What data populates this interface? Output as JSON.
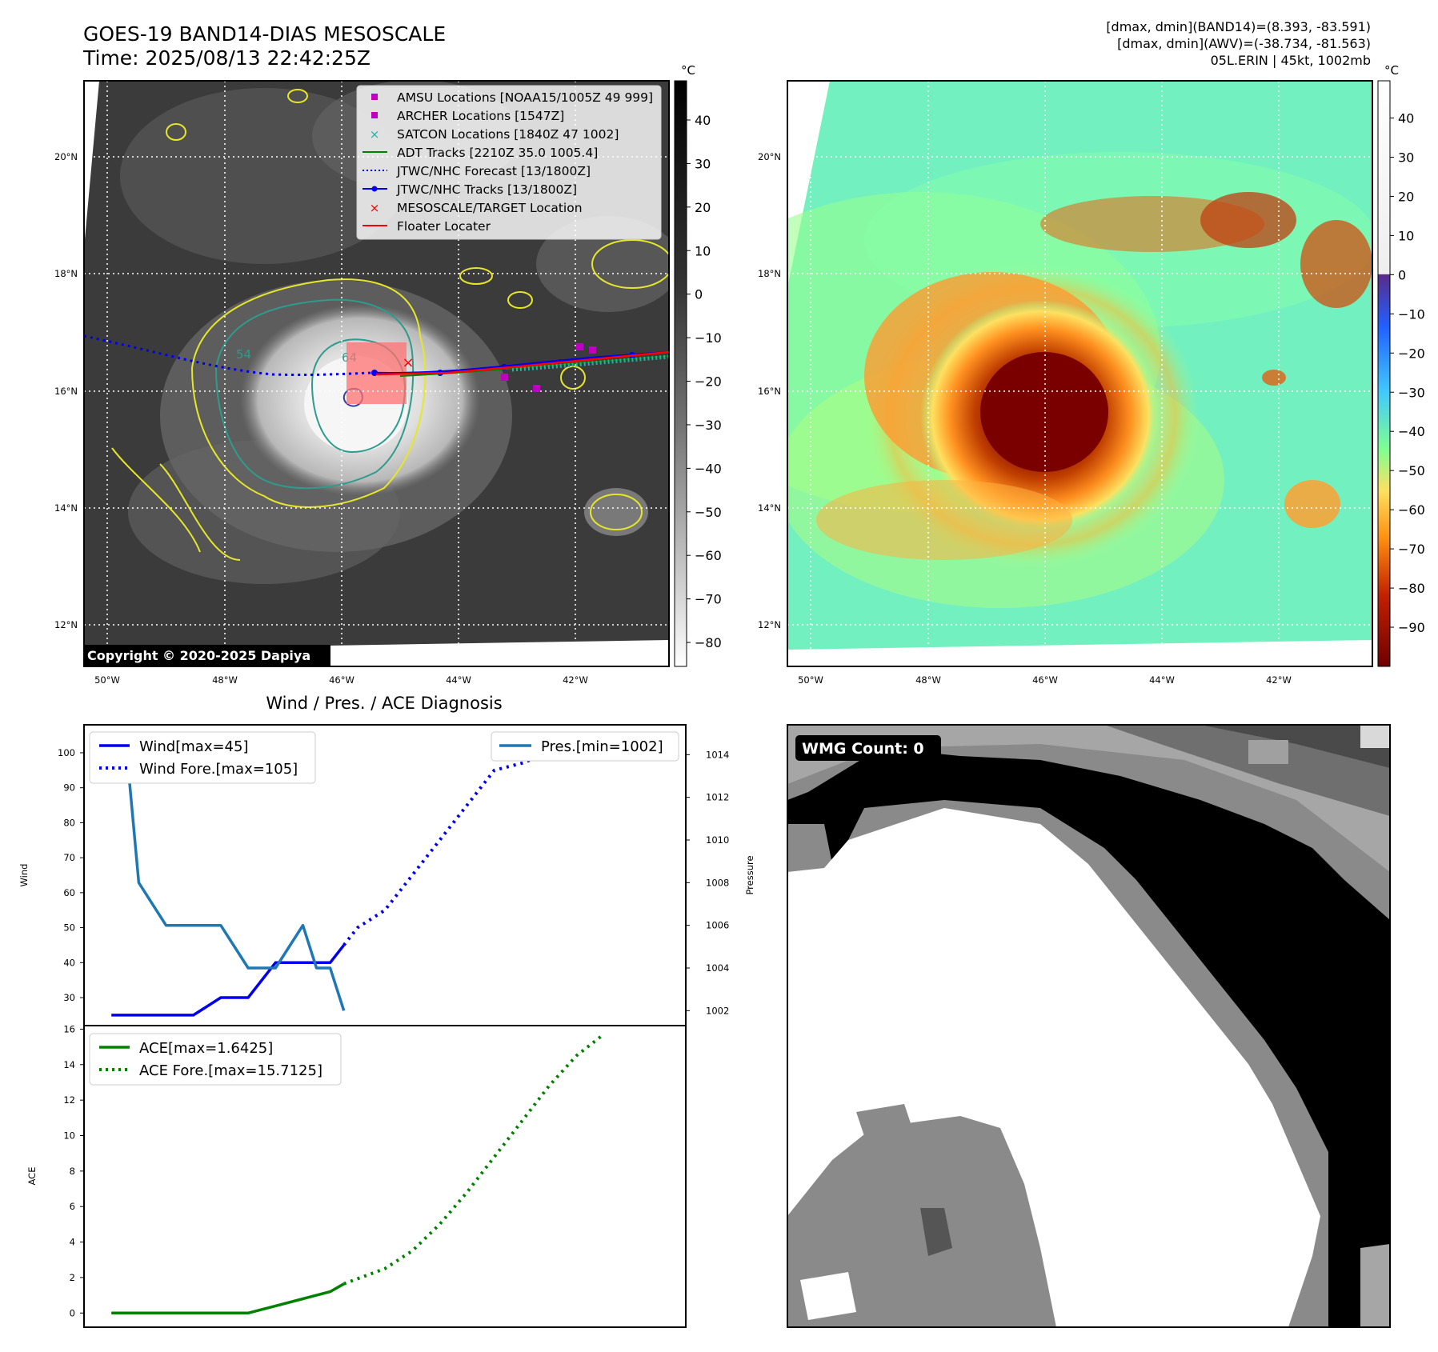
{
  "header": {
    "title": "GOES-19 BAND14-DIAS MESOSCALE",
    "time": "Time: 2025/08/13 22:42:25Z",
    "dmax_band14": "[dmax, dmin](BAND14)=(8.393, -83.591)",
    "dmax_awv": "[dmax, dmin](AWV)=(-38.734, -81.563)",
    "storm": "05L.ERIN | 45kt, 1002mb"
  },
  "map": {
    "lat_labels": [
      "20°N",
      "18°N",
      "16°N",
      "14°N",
      "12°N"
    ],
    "lon_labels": [
      "50°W",
      "48°W",
      "46°W",
      "44°W",
      "42°W"
    ],
    "copyright": "Copyright © 2020-2025 Dapiya",
    "contour_labels": [
      "54",
      "64"
    ],
    "colorbar_unit": "°C",
    "ir_colorbar_ticks": [
      "40",
      "30",
      "20",
      "10",
      "0",
      "−10",
      "−20",
      "−30",
      "−40",
      "−50",
      "−60",
      "−70",
      "−80"
    ],
    "awv_colorbar_ticks": [
      "40",
      "30",
      "20",
      "10",
      "0",
      "−10",
      "−20",
      "−30",
      "−40",
      "−50",
      "−60",
      "−70",
      "−80",
      "−90"
    ],
    "legend": [
      {
        "label": "AMSU Locations [NOAA15/1005Z 49 999]",
        "color": "#c000c0",
        "marker": "square"
      },
      {
        "label": "ARCHER Locations [1547Z]",
        "color": "#c000c0",
        "marker": "square"
      },
      {
        "label": "SATCON Locations [1840Z 47 1002]",
        "color": "#20b2aa",
        "marker": "x"
      },
      {
        "label": "ADT Tracks [2210Z 35.0 1005.4]",
        "color": "#008000",
        "marker": "line"
      },
      {
        "label": "JTWC/NHC Forecast [13/1800Z]",
        "color": "#0000ff",
        "marker": "dotted"
      },
      {
        "label": "JTWC/NHC Tracks [13/1800Z]",
        "color": "#0000ff",
        "marker": "line-dot"
      },
      {
        "label": "MESOSCALE/TARGET Location",
        "color": "#ff0000",
        "marker": "x"
      },
      {
        "label": "Floater Locater",
        "color": "#ff0000",
        "marker": "line"
      }
    ]
  },
  "wmg": {
    "label": "WMG Count: 0"
  },
  "chart_data": [
    {
      "type": "line",
      "title": "Wind / Pres. / ACE Diagnosis",
      "ylabel": "Wind",
      "y2label": "Pressure",
      "ylim": [
        22,
        108
      ],
      "y2lim": [
        1001.3,
        1015.4
      ],
      "yticks": [
        30,
        40,
        50,
        60,
        70,
        80,
        90,
        100
      ],
      "y2ticks": [
        1002,
        1004,
        1006,
        1008,
        1010,
        1012,
        1014
      ],
      "series": [
        {
          "name": "Wind[max=45]",
          "color": "#0000ee",
          "style": "solid",
          "x": [
            0,
            1,
            2,
            3,
            4,
            5,
            6,
            7,
            8,
            8.5
          ],
          "y": [
            25,
            25,
            25,
            25,
            30,
            30,
            40,
            40,
            40,
            45
          ]
        },
        {
          "name": "Wind Fore.[max=105]",
          "color": "#0000ee",
          "style": "dotted",
          "x": [
            8.5,
            9,
            10,
            11,
            12,
            13,
            14,
            15,
            16,
            17,
            17.5,
            18
          ],
          "y": [
            45,
            50,
            55,
            65,
            75,
            85,
            95,
            97,
            100,
            102,
            104,
            105
          ]
        },
        {
          "name": "Pres.[min=1002]",
          "color": "#1f77b4",
          "style": "solid",
          "axis": "right",
          "x": [
            0,
            0.5,
            1,
            2,
            3,
            4,
            5,
            6,
            7,
            7.5,
            8,
            8.5
          ],
          "y": [
            1015,
            1015,
            1008,
            1006,
            1006,
            1006,
            1004,
            1004,
            1006,
            1004,
            1004,
            1002
          ]
        }
      ]
    },
    {
      "type": "line",
      "ylabel": "ACE",
      "ylim": [
        -0.8,
        16.2
      ],
      "yticks": [
        0,
        2,
        4,
        6,
        8,
        10,
        12,
        14,
        16
      ],
      "series": [
        {
          "name": "ACE[max=1.6425]",
          "color": "#008000",
          "style": "solid",
          "x": [
            0,
            1,
            2,
            3,
            4,
            5,
            6,
            7,
            8,
            8.5
          ],
          "y": [
            0,
            0,
            0,
            0,
            0,
            0,
            0.4,
            0.8,
            1.2,
            1.6425
          ]
        },
        {
          "name": "ACE Fore.[max=15.7125]",
          "color": "#008000",
          "style": "dotted",
          "x": [
            8.5,
            10,
            11,
            12,
            13,
            14,
            15,
            16,
            17,
            18
          ],
          "y": [
            1.6425,
            2.5,
            3.5,
            5,
            6.8,
            8.8,
            10.8,
            12.8,
            14.5,
            15.7125
          ]
        }
      ]
    }
  ]
}
